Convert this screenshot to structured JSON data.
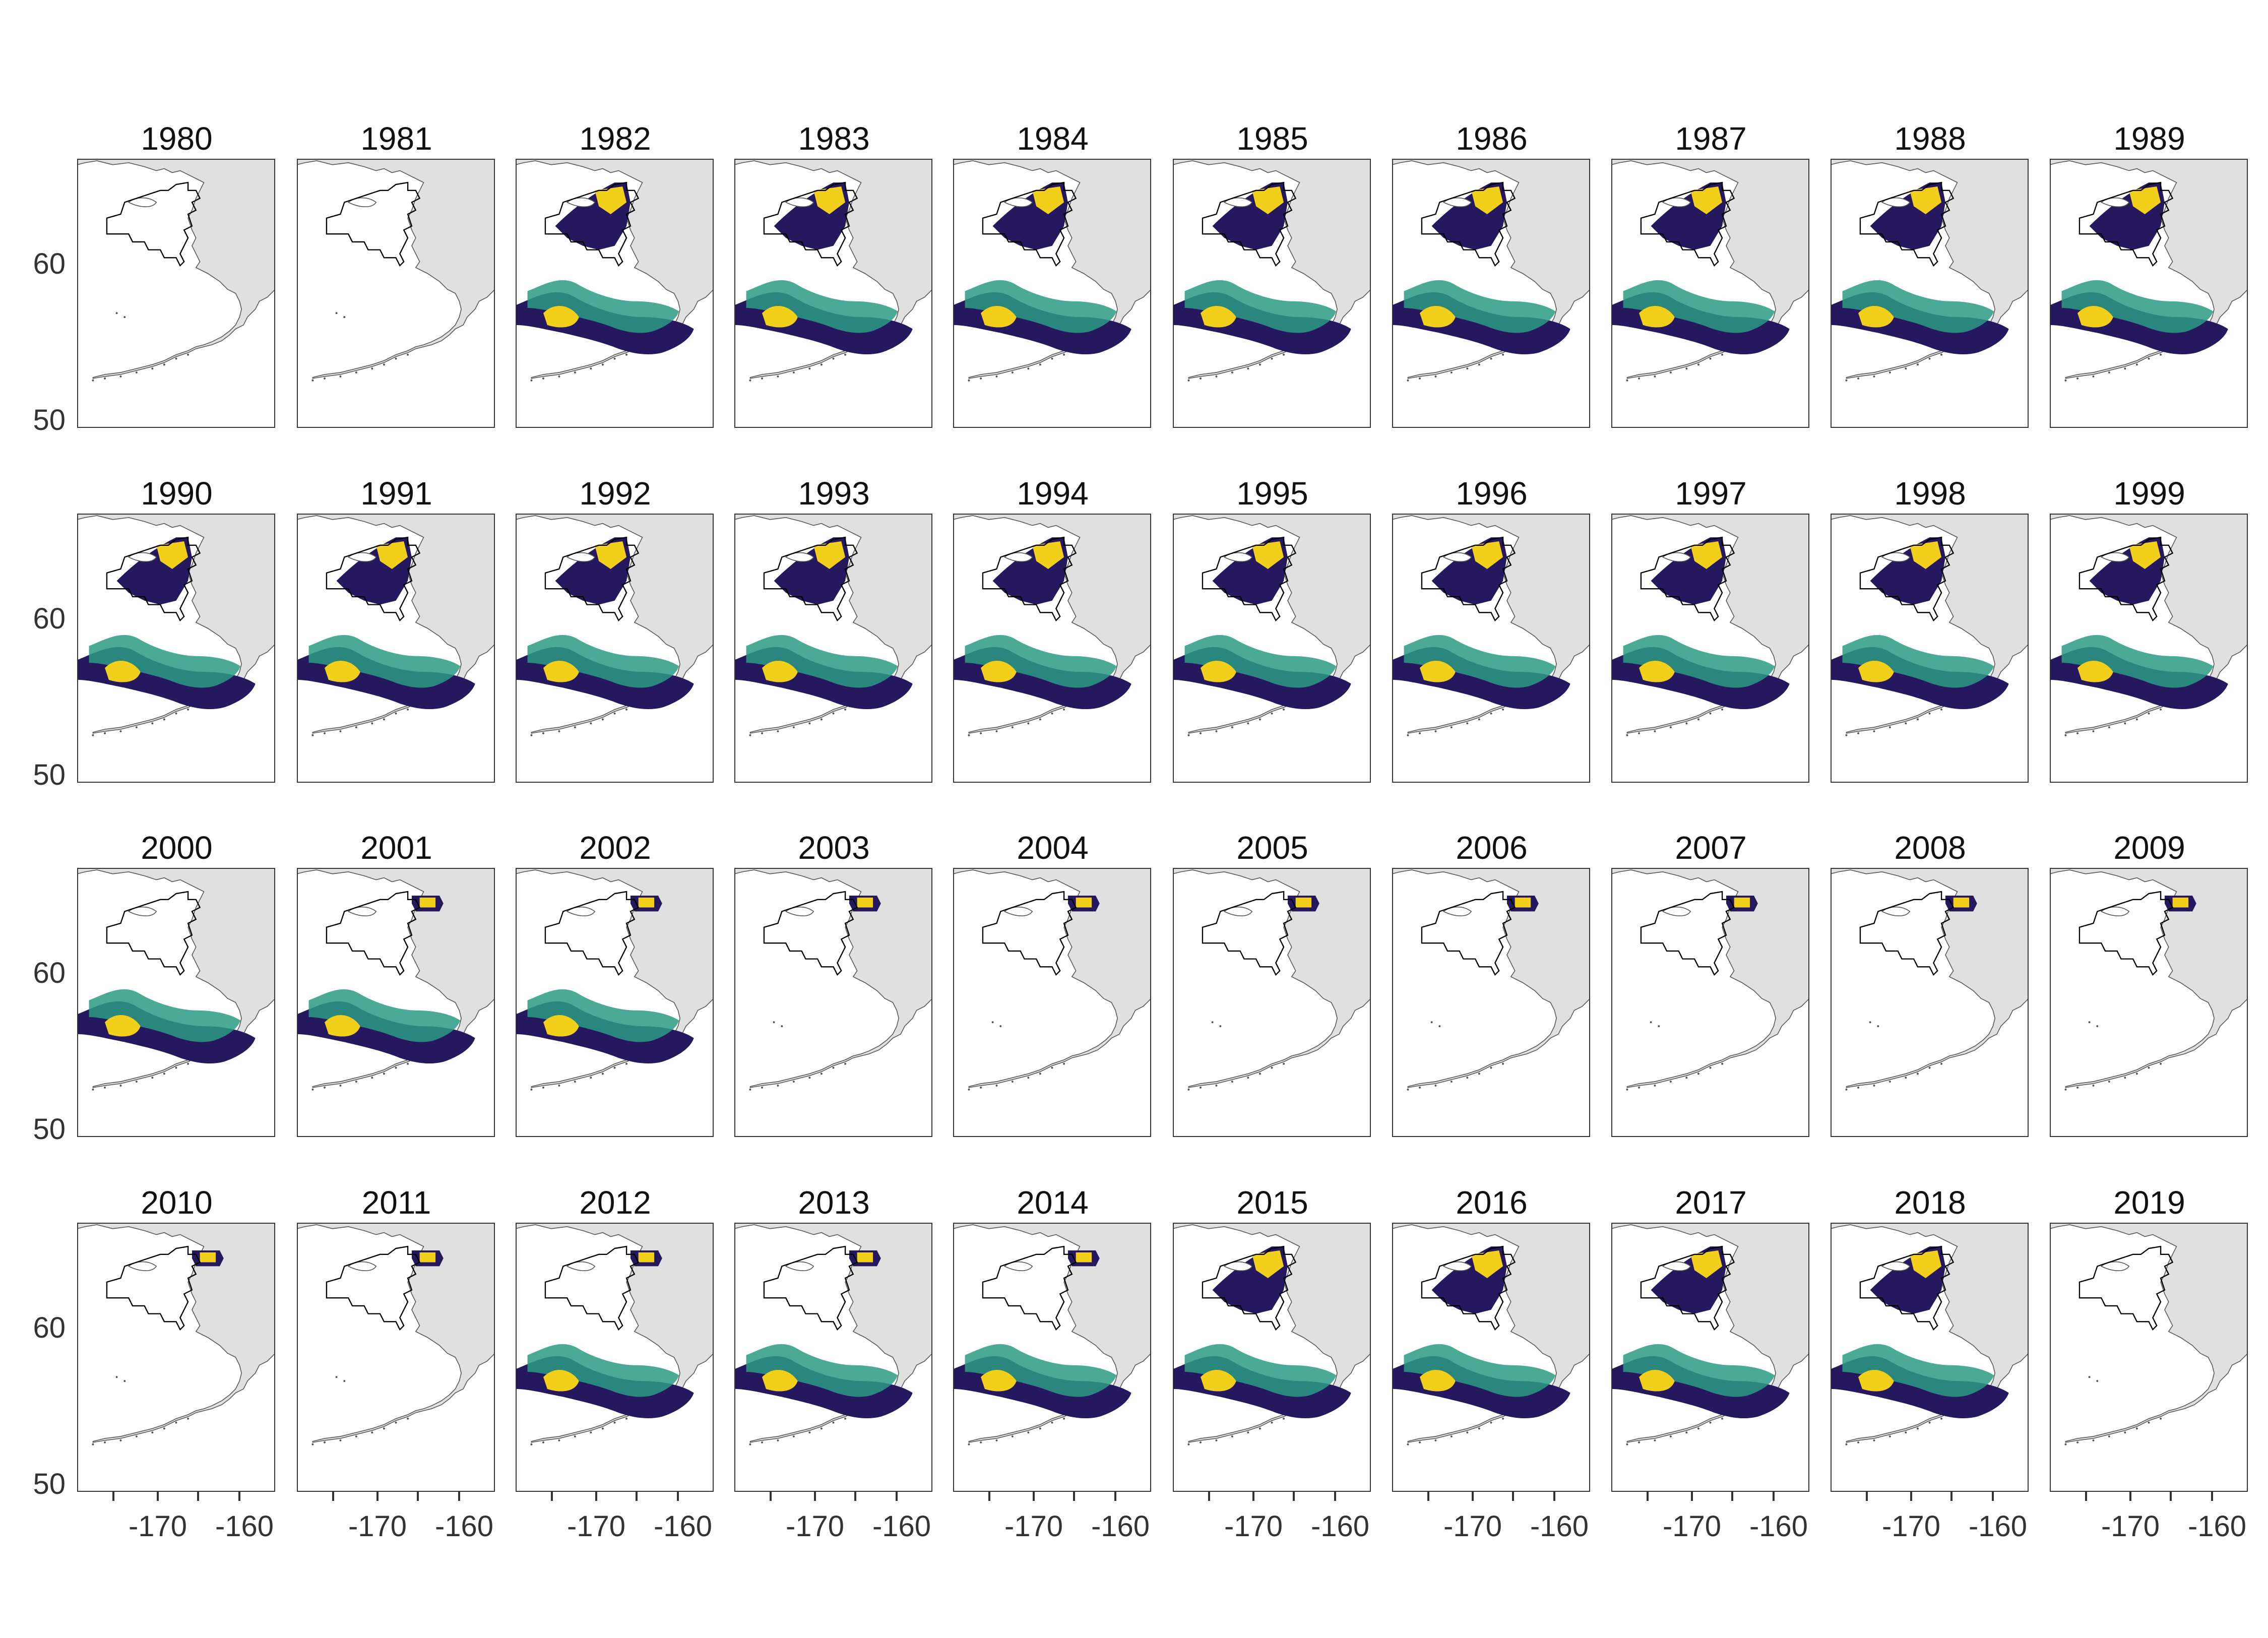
{
  "figure": {
    "years": [
      "1980",
      "1981",
      "1982",
      "1983",
      "1984",
      "1985",
      "1986",
      "1987",
      "1988",
      "1989",
      "1990",
      "1991",
      "1992",
      "1993",
      "1994",
      "1995",
      "1996",
      "1997",
      "1998",
      "1999",
      "2000",
      "2001",
      "2002",
      "2003",
      "2004",
      "2005",
      "2006",
      "2007",
      "2008",
      "2009",
      "2010",
      "2011",
      "2012",
      "2013",
      "2014",
      "2015",
      "2016",
      "2017",
      "2018",
      "2019"
    ],
    "y_axis_labels": [
      "60",
      "50"
    ],
    "x_axis_labels": [
      "-170",
      "-160"
    ],
    "colors": {
      "land": "#e0e0e0",
      "coast": "#555555",
      "outline": "#000000",
      "low": "#25185e",
      "mid_low": "#2d5e8a",
      "mid": "#2a9b82",
      "high": "#f2cf1b",
      "frame": "#333333"
    },
    "presence_by_year": {
      "1980": "none",
      "1981": "none",
      "1982": "south+north",
      "1983": "south+north",
      "1984": "south+north",
      "1985": "south+north",
      "1986": "south+north",
      "1987": "south+north",
      "1988": "south+north",
      "1989": "south+north",
      "1990": "south+north",
      "1991": "south+north",
      "1992": "south+north",
      "1993": "south+north",
      "1994": "south+north",
      "1995": "south+north",
      "1996": "south+north",
      "1997": "south+north",
      "1998": "south+north",
      "1999": "south+north",
      "2000": "south",
      "2001": "south+nortonsound",
      "2002": "south+nortonsound",
      "2003": "nortonsound",
      "2004": "nortonsound",
      "2005": "nortonsound",
      "2006": "nortonsound",
      "2007": "nortonsound",
      "2008": "nortonsound",
      "2009": "nortonsound",
      "2010": "nortonsound",
      "2011": "nortonsound",
      "2012": "south+nortonsound",
      "2013": "south+nortonsound",
      "2014": "south+nortonsound",
      "2015": "south+north",
      "2016": "south+north",
      "2017": "south+north",
      "2018": "south+north",
      "2019": "none"
    }
  }
}
